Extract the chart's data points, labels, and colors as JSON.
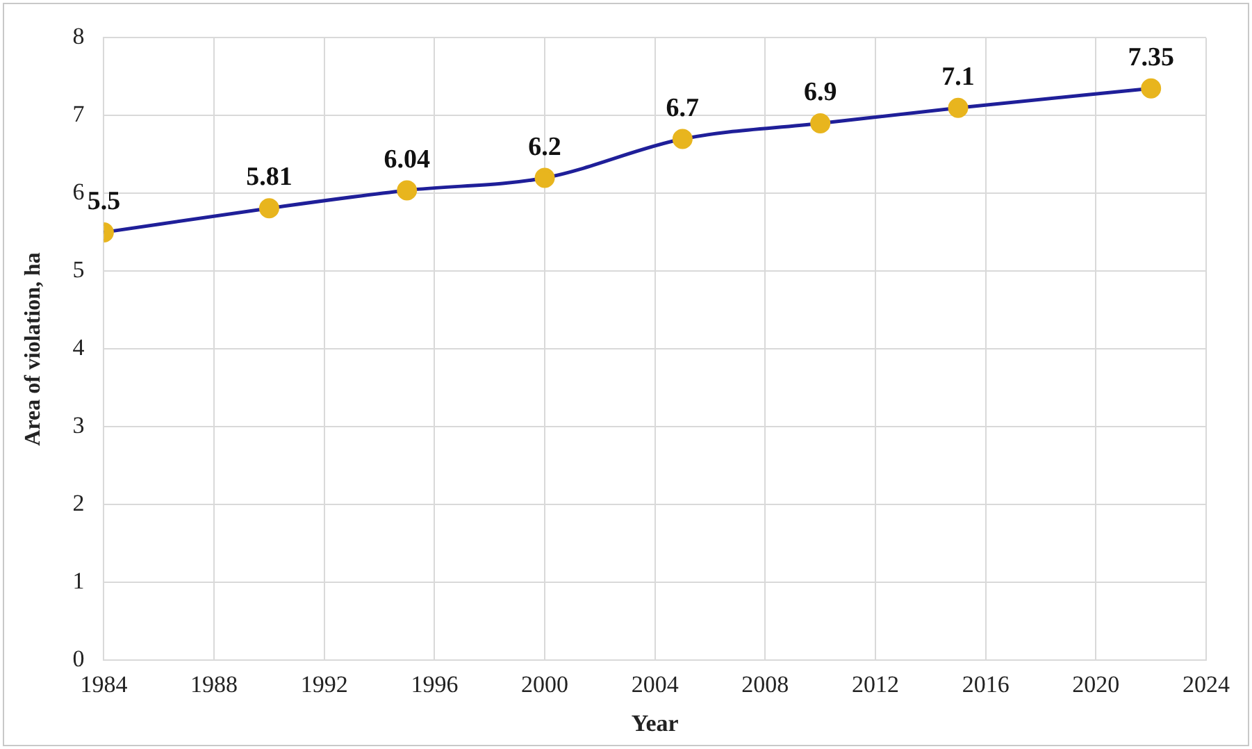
{
  "chart_data": {
    "type": "line",
    "xlabel": "Year",
    "ylabel": "Area of violation, ha",
    "x": [
      1984,
      1990,
      1995,
      2000,
      2005,
      2010,
      2015,
      2022
    ],
    "series": [
      {
        "color": "#1f1f99",
        "colors": [
          "#e8b51e",
          "#e8b51e",
          "#e8b51e",
          "#e8b51e",
          "#e8b51e",
          "#e8b51e",
          "#e8b51e",
          "#e8b51e"
        ],
        "values": [
          5.5,
          5.81,
          6.04,
          6.2,
          6.7,
          6.9,
          7.1,
          7.35
        ]
      }
    ],
    "marker": "circle",
    "data_labels": true,
    "xlim": [
      1984,
      2024
    ],
    "xticks": [
      1984,
      1988,
      1992,
      1996,
      2000,
      2004,
      2008,
      2012,
      2016,
      2020,
      2024
    ],
    "ylim": [
      0,
      8
    ],
    "yticks": [
      0,
      1,
      2,
      3,
      4,
      5,
      6,
      7,
      8
    ],
    "grid": true,
    "legend": false
  }
}
